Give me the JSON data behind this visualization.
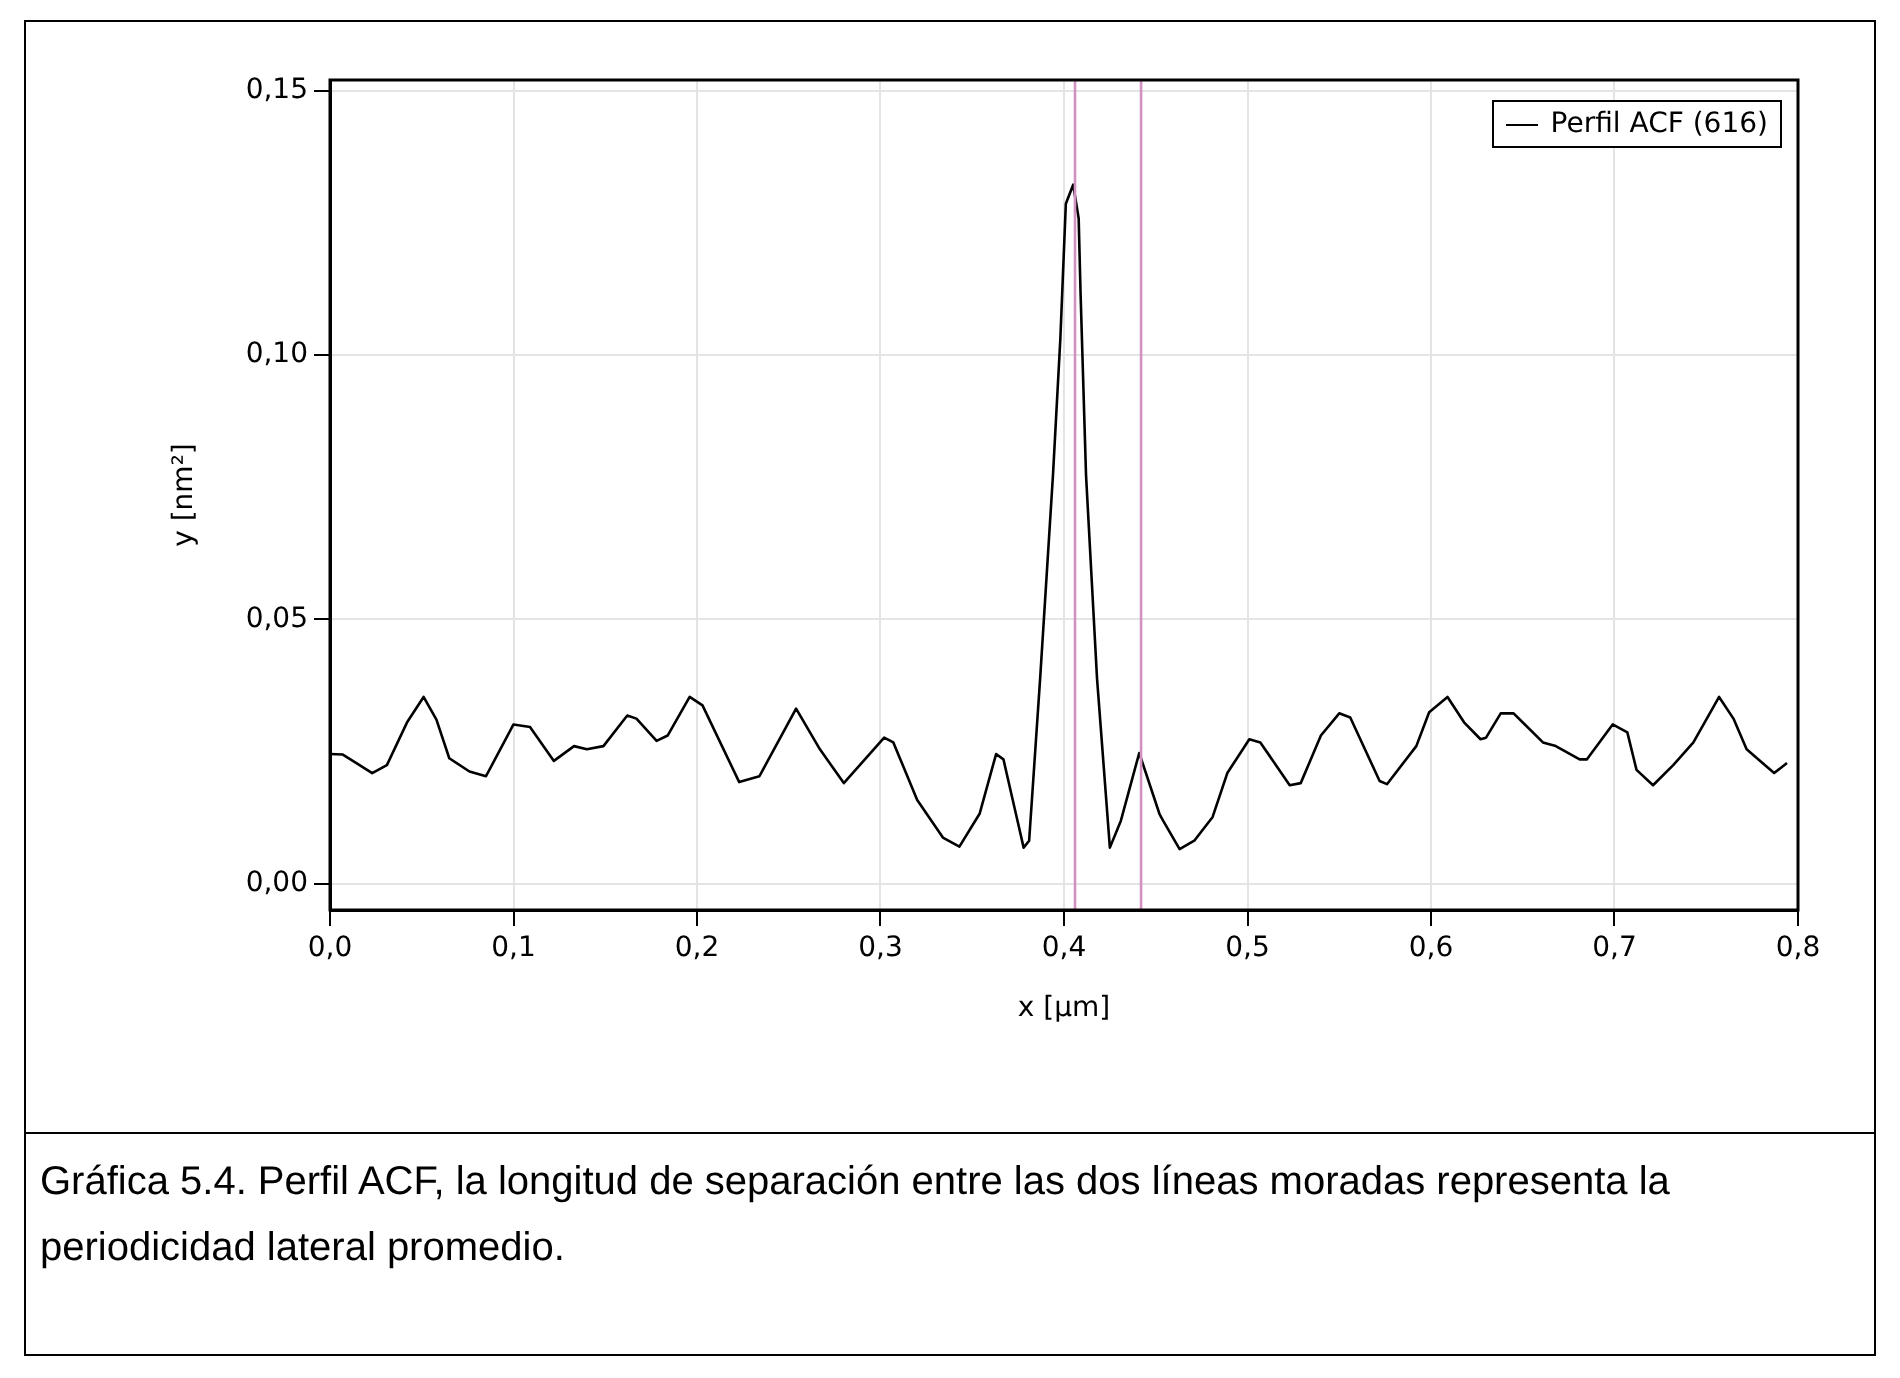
{
  "chart_data": {
    "type": "line",
    "xlabel": "x [µm]",
    "ylabel": "y [nm²]",
    "legend": "top right",
    "grid": true,
    "marker": "none",
    "line_style": "solid",
    "xlim": [
      0,
      0.8
    ],
    "ylim": [
      -0.005,
      0.152
    ],
    "xticks": [
      {
        "value": 0,
        "label": "0,0"
      },
      {
        "value": 0.1,
        "label": "0,1"
      },
      {
        "value": 0.2,
        "label": "0,2"
      },
      {
        "value": 0.3,
        "label": "0,3"
      },
      {
        "value": 0.4,
        "label": "0,4"
      },
      {
        "value": 0.5,
        "label": "0,5"
      },
      {
        "value": 0.6,
        "label": "0,6"
      },
      {
        "value": 0.7,
        "label": "0,7"
      },
      {
        "value": 0.8,
        "label": "0,8"
      }
    ],
    "yticks": [
      {
        "value": 0,
        "label": "0,00"
      },
      {
        "value": 0.05,
        "label": "0,05"
      },
      {
        "value": 0.1,
        "label": "0,10"
      },
      {
        "value": 0.15,
        "label": "0,15"
      }
    ],
    "ref_lines": [
      {
        "axis": "x",
        "value": 0.406,
        "color": "#d391c0"
      },
      {
        "axis": "x",
        "value": 0.442,
        "color": "#d391c0"
      }
    ],
    "annotations": [
      "Gráfica 5.4. Perfil ACF, la longitud de separación entre las dos líneas moradas representa la periodicidad lateral promedio."
    ],
    "series": [
      {
        "name": "Perfil ACF (616)",
        "color": "#000000",
        "x": [
          0,
          0.007,
          0.023,
          0.031,
          0.042,
          0.051,
          0.058,
          0.065,
          0.076,
          0.085,
          0.1,
          0.109,
          0.122,
          0.133,
          0.14,
          0.149,
          0.162,
          0.167,
          0.178,
          0.184,
          0.196,
          0.203,
          0.223,
          0.234,
          0.254,
          0.267,
          0.28,
          0.302,
          0.307,
          0.32,
          0.334,
          0.343,
          0.354,
          0.363,
          0.367,
          0.378,
          0.381,
          0.387,
          0.394,
          0.398,
          0.401,
          0.405,
          0.408,
          0.409,
          0.412,
          0.418,
          0.425,
          0.431,
          0.441,
          0.452,
          0.454,
          0.463,
          0.471,
          0.481,
          0.489,
          0.501,
          0.507,
          0.523,
          0.529,
          0.54,
          0.55,
          0.556,
          0.572,
          0.576,
          0.592,
          0.599,
          0.609,
          0.618,
          0.627,
          0.63,
          0.638,
          0.645,
          0.661,
          0.668,
          0.681,
          0.685,
          0.699,
          0.707,
          0.712,
          0.721,
          0.732,
          0.743,
          0.757,
          0.765,
          0.772,
          0.787,
          0.794
        ],
        "values": [
          0.0245,
          0.0244,
          0.0209,
          0.0224,
          0.0305,
          0.0353,
          0.031,
          0.0237,
          0.0212,
          0.0203,
          0.0301,
          0.0296,
          0.0232,
          0.026,
          0.0254,
          0.026,
          0.0318,
          0.0312,
          0.027,
          0.028,
          0.0353,
          0.0337,
          0.0192,
          0.0203,
          0.0331,
          0.0254,
          0.019,
          0.0276,
          0.0267,
          0.0158,
          0.0087,
          0.007,
          0.0132,
          0.0245,
          0.0235,
          0.0068,
          0.0081,
          0.0388,
          0.0773,
          0.103,
          0.1286,
          0.1322,
          0.1258,
          0.112,
          0.0773,
          0.0388,
          0.0068,
          0.0119,
          0.0247,
          0.0132,
          0.0119,
          0.0065,
          0.0081,
          0.0126,
          0.0209,
          0.0273,
          0.0267,
          0.0186,
          0.019,
          0.028,
          0.0322,
          0.0314,
          0.0194,
          0.0188,
          0.026,
          0.0324,
          0.0353,
          0.0305,
          0.0273,
          0.0276,
          0.0322,
          0.0322,
          0.0267,
          0.026,
          0.0235,
          0.0235,
          0.0301,
          0.0286,
          0.0215,
          0.0186,
          0.0224,
          0.0267,
          0.0353,
          0.0311,
          0.0254,
          0.0209,
          0.0228
        ]
      }
    ]
  }
}
